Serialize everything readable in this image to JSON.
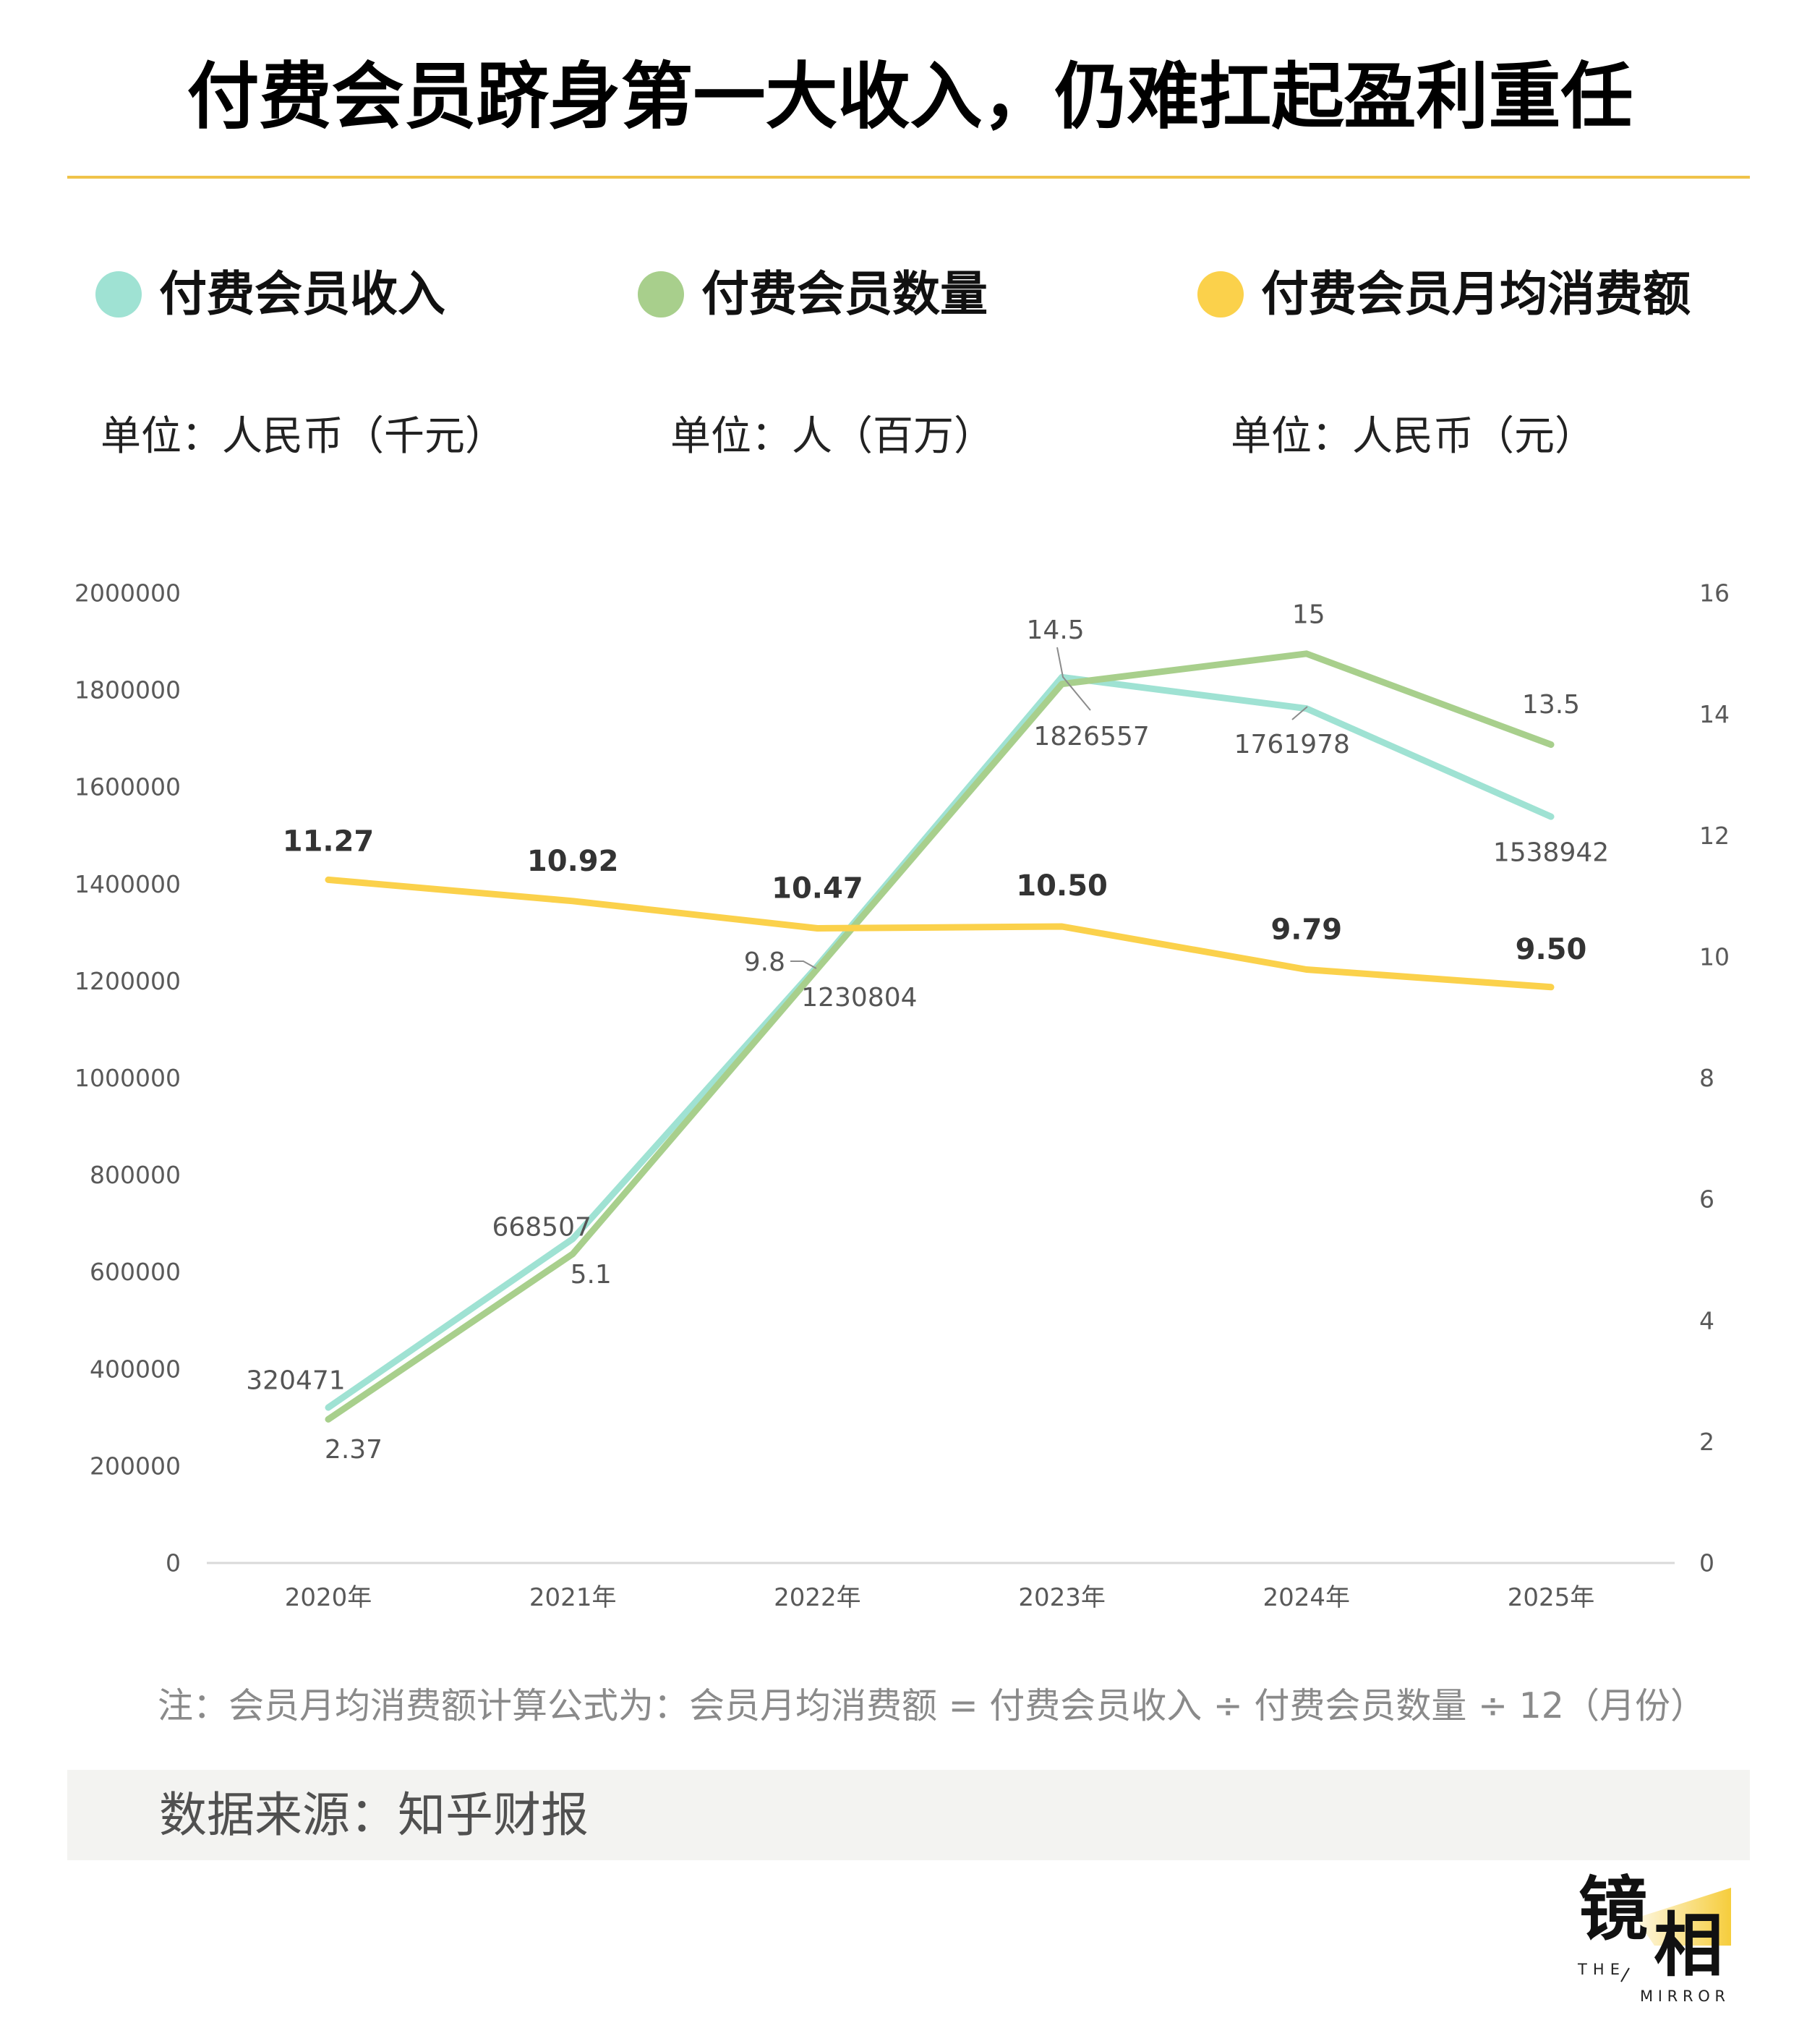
{
  "chart_data": {
    "type": "line",
    "title": "付费会员跻身第一大收入，仍难扛起盈利重任",
    "categories": [
      "2020年",
      "2021年",
      "2022年",
      "2023年",
      "2024年",
      "2025年"
    ],
    "series": [
      {
        "name": "付费会员收入",
        "unit": "单位：人民币（千元）",
        "axis": "left",
        "color": "#9fe2d3",
        "values": [
          320471,
          668507,
          1230804,
          1826557,
          1761978,
          1538942
        ],
        "labels": [
          "320471",
          "668507",
          "1230804",
          "1826557",
          "1761978",
          "1538942"
        ]
      },
      {
        "name": "付费会员数量",
        "unit": "单位：人（百万）",
        "axis": "right",
        "color": "#a8cf8c",
        "values": [
          2.37,
          5.1,
          9.8,
          14.5,
          15,
          13.5
        ],
        "labels": [
          "2.37",
          "5.1",
          "9.8",
          "14.5",
          "15",
          "13.5"
        ]
      },
      {
        "name": "付费会员月均消费额",
        "unit": "单位：人民币（元）",
        "axis": "right",
        "color": "#fbd14b",
        "values": [
          11.27,
          10.92,
          10.47,
          10.5,
          9.79,
          9.5
        ],
        "labels": [
          "11.27",
          "10.92",
          "10.47",
          "10.50",
          "9.79",
          "9.50"
        ]
      }
    ],
    "y_left": {
      "range": [
        0,
        2000000
      ],
      "ticks": [
        0,
        200000,
        400000,
        600000,
        800000,
        1000000,
        1200000,
        1400000,
        1600000,
        1800000,
        2000000
      ]
    },
    "y_right": {
      "range": [
        0,
        16
      ],
      "ticks": [
        0,
        2,
        4,
        6,
        8,
        10,
        12,
        14,
        16
      ]
    },
    "grid": false,
    "legend_position": "top"
  },
  "note": "注：会员月均消费额计算公式为：会员月均消费额 = 付费会员收入 ÷ 付费会员数量 ÷ 12（月份）",
  "source": "数据来源：知乎财报",
  "logo": {
    "cn_left": "镜",
    "cn_right": "相",
    "en_top": "THE",
    "en_bottom": "MIRROR"
  },
  "colors": {
    "title_rule": "#f0c34a",
    "source_band": "#f3f3f1",
    "logo_accent": "#f6cd3c",
    "axis_line": "#d9d9d9",
    "leader_line": "#8c8c8c"
  }
}
